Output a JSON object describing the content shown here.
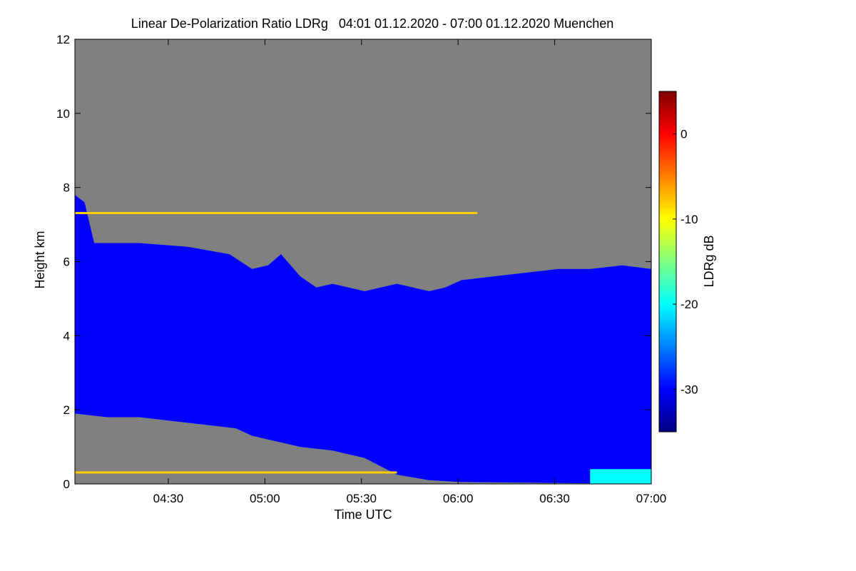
{
  "chart_data": {
    "type": "heatmap",
    "title": "Linear De-Polarization Ratio LDRg   04:01 01.12.2020 - 07:00 01.12.2020 Muenchen",
    "xlabel": "Time UTC",
    "ylabel": "Height km",
    "xlim": [
      "04:01",
      "07:00"
    ],
    "ylim": [
      0,
      12
    ],
    "x_ticks": [
      "04:30",
      "05:00",
      "05:30",
      "06:00",
      "06:30",
      "07:00"
    ],
    "y_ticks": [
      "0",
      "2",
      "4",
      "6",
      "8",
      "10",
      "12"
    ],
    "colorbar": {
      "label": "LDRg dB",
      "range": [
        -35,
        5
      ],
      "ticks": [
        "0",
        "-10",
        "-20",
        "-30"
      ],
      "colormap": "jet"
    },
    "background_color": "#808080",
    "features": {
      "cloud_top_km": [
        [
          0,
          7.8
        ],
        [
          3,
          7.6
        ],
        [
          6,
          6.5
        ],
        [
          20,
          6.5
        ],
        [
          35,
          6.4
        ],
        [
          48,
          6.2
        ],
        [
          55,
          5.8
        ],
        [
          60,
          5.9
        ],
        [
          64,
          6.2
        ],
        [
          66,
          6.0
        ],
        [
          70,
          5.6
        ],
        [
          75,
          5.3
        ],
        [
          80,
          5.4
        ],
        [
          85,
          5.3
        ],
        [
          90,
          5.2
        ],
        [
          95,
          5.3
        ],
        [
          100,
          5.4
        ],
        [
          105,
          5.3
        ],
        [
          110,
          5.2
        ],
        [
          115,
          5.3
        ],
        [
          120,
          5.5
        ],
        [
          130,
          5.6
        ],
        [
          140,
          5.7
        ],
        [
          150,
          5.8
        ],
        [
          160,
          5.8
        ],
        [
          170,
          5.9
        ],
        [
          179,
          5.8
        ]
      ],
      "cloud_base_km": [
        [
          0,
          1.9
        ],
        [
          10,
          1.8
        ],
        [
          20,
          1.8
        ],
        [
          30,
          1.7
        ],
        [
          40,
          1.6
        ],
        [
          50,
          1.5
        ],
        [
          55,
          1.3
        ],
        [
          60,
          1.2
        ],
        [
          65,
          1.1
        ],
        [
          70,
          1.0
        ],
        [
          80,
          0.9
        ],
        [
          85,
          0.8
        ],
        [
          90,
          0.7
        ],
        [
          100,
          0.25
        ],
        [
          110,
          0.1
        ],
        [
          120,
          0.05
        ],
        [
          179,
          0.0
        ]
      ],
      "cloud_ldr_db": -30,
      "cirrus_layer": {
        "height_km": 7.3,
        "ldr_db": -8
      },
      "near_surface_layer": {
        "height_km": 0.3,
        "ldr_db": -8
      },
      "surface_echo": {
        "start_min": 160,
        "end_min": 179,
        "ldr_db": -20
      }
    }
  }
}
